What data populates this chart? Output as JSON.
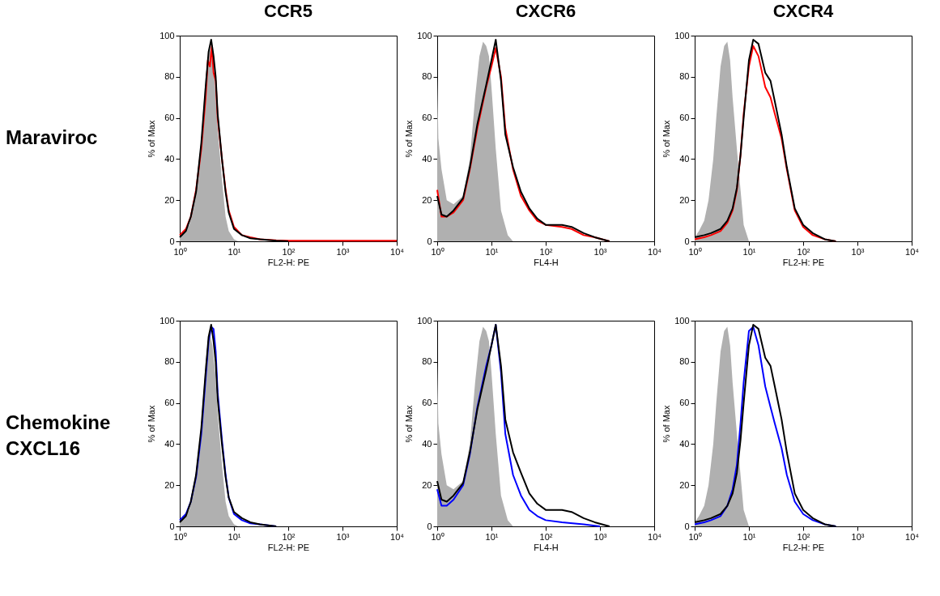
{
  "chart_data": [
    {
      "type": "area",
      "title": "CCR5",
      "annotations": [
        "Maraviroc"
      ],
      "xlabel": "FL2-H: PE",
      "ylabel": "% of Max",
      "log": "x",
      "xlim": [
        1,
        10000
      ],
      "ylim": [
        0,
        100
      ],
      "xticks": [
        {
          "value": 1,
          "label": "10⁰"
        },
        {
          "value": 10,
          "label": "10¹"
        },
        {
          "value": 100,
          "label": "10²"
        },
        {
          "value": 1000,
          "label": "10³"
        },
        {
          "value": 10000,
          "label": "10⁴"
        }
      ],
      "yticks": [
        0,
        20,
        40,
        60,
        80,
        100
      ],
      "series": [
        {
          "type": "area",
          "color": "#b0b0b0",
          "x": [
            1,
            1.5,
            2,
            2.5,
            3,
            3.5,
            4,
            4.5,
            5,
            6,
            7,
            8,
            10,
            12
          ],
          "values": [
            2,
            8,
            25,
            50,
            80,
            95,
            88,
            75,
            55,
            30,
            12,
            5,
            1,
            0
          ]
        },
        {
          "type": "line",
          "color": "#ff0000",
          "x": [
            1,
            1.3,
            1.6,
            2,
            2.5,
            3,
            3.3,
            3.6,
            3.9,
            4.2,
            4.6,
            5,
            6,
            7,
            8,
            10,
            14,
            20,
            30,
            60,
            100,
            1000,
            10000
          ],
          "values": [
            3,
            6,
            12,
            25,
            45,
            70,
            88,
            85,
            95,
            82,
            78,
            60,
            40,
            25,
            15,
            7,
            3,
            2,
            1,
            0.5,
            0.3,
            0.3,
            0.3
          ]
        },
        {
          "type": "line",
          "color": "#000000",
          "x": [
            1,
            1.3,
            1.6,
            2,
            2.5,
            3,
            3.4,
            3.8,
            4.2,
            4.6,
            5,
            6,
            7,
            8,
            10,
            14,
            20,
            30,
            60,
            100
          ],
          "values": [
            2,
            5,
            12,
            24,
            48,
            75,
            92,
            98,
            90,
            80,
            62,
            40,
            24,
            14,
            6,
            3,
            1.5,
            1,
            0.3,
            0
          ]
        }
      ]
    },
    {
      "type": "area",
      "title": "CXCR6",
      "xlabel": "FL4-H",
      "ylabel": "% of Max",
      "log": "x",
      "xlim": [
        1,
        10000
      ],
      "ylim": [
        0,
        100
      ],
      "xticks": [
        {
          "value": 1,
          "label": "10⁰"
        },
        {
          "value": 10,
          "label": "10¹"
        },
        {
          "value": 100,
          "label": "10²"
        },
        {
          "value": 1000,
          "label": "10³"
        },
        {
          "value": 10000,
          "label": "10⁴"
        }
      ],
      "yticks": [
        0,
        20,
        40,
        60,
        80,
        100
      ],
      "series": [
        {
          "type": "area",
          "color": "#b0b0b0",
          "x": [
            1,
            1.05,
            1.2,
            1.5,
            2,
            3,
            4,
            5,
            6,
            7,
            8,
            9,
            10,
            12,
            15,
            20,
            25
          ],
          "values": [
            80,
            50,
            35,
            20,
            18,
            22,
            40,
            70,
            90,
            97,
            95,
            90,
            75,
            45,
            15,
            3,
            0
          ]
        },
        {
          "type": "line",
          "color": "#ff0000",
          "x": [
            1,
            1.2,
            1.5,
            2,
            3,
            4,
            5.5,
            8,
            10,
            12,
            15,
            18,
            25,
            35,
            50,
            70,
            100,
            200,
            300,
            500,
            800,
            1500
          ],
          "values": [
            25,
            12,
            12,
            14,
            20,
            35,
            55,
            75,
            85,
            94,
            80,
            55,
            35,
            22,
            15,
            10,
            8,
            7,
            6,
            3,
            2,
            0
          ]
        },
        {
          "type": "line",
          "color": "#000000",
          "x": [
            1,
            1.2,
            1.5,
            2,
            3,
            4,
            5.5,
            8,
            10,
            12,
            15,
            18,
            25,
            35,
            50,
            70,
            100,
            200,
            300,
            500,
            800,
            1500
          ],
          "values": [
            22,
            13,
            12,
            15,
            21,
            36,
            57,
            76,
            88,
            98,
            78,
            52,
            36,
            24,
            16,
            11,
            8,
            8,
            7,
            4,
            2,
            0
          ]
        }
      ]
    },
    {
      "type": "area",
      "title": "CXCR4",
      "xlabel": "FL2-H: PE",
      "ylabel": "% of Max",
      "log": "x",
      "xlim": [
        1,
        10000
      ],
      "ylim": [
        0,
        100
      ],
      "xticks": [
        {
          "value": 1,
          "label": "10⁰"
        },
        {
          "value": 10,
          "label": "10¹"
        },
        {
          "value": 100,
          "label": "10²"
        },
        {
          "value": 1000,
          "label": "10³"
        },
        {
          "value": 10000,
          "label": "10⁴"
        }
      ],
      "yticks": [
        0,
        20,
        40,
        60,
        80,
        100
      ],
      "series": [
        {
          "type": "area",
          "color": "#b0b0b0",
          "x": [
            1,
            1.2,
            1.5,
            1.8,
            2.2,
            2.5,
            3,
            3.5,
            4,
            4.5,
            5,
            6,
            7,
            8,
            10
          ],
          "values": [
            2,
            5,
            10,
            20,
            40,
            60,
            85,
            95,
            97,
            88,
            70,
            45,
            25,
            8,
            0
          ]
        },
        {
          "type": "line",
          "color": "#ff0000",
          "x": [
            1,
            1.5,
            2,
            3,
            4,
            5,
            6,
            7,
            8,
            10,
            12,
            15,
            20,
            25,
            30,
            40,
            50,
            70,
            100,
            150,
            250,
            400
          ],
          "values": [
            1,
            2,
            3,
            5,
            9,
            15,
            25,
            42,
            62,
            85,
            95,
            90,
            75,
            70,
            62,
            50,
            35,
            15,
            7,
            3,
            1,
            0
          ]
        },
        {
          "type": "line",
          "color": "#000000",
          "x": [
            1,
            1.5,
            2,
            3,
            4,
            5,
            6,
            7,
            8,
            10,
            12,
            15,
            20,
            25,
            30,
            40,
            50,
            70,
            100,
            150,
            250,
            400
          ],
          "values": [
            2,
            3,
            4,
            6,
            10,
            16,
            26,
            42,
            60,
            88,
            98,
            96,
            82,
            78,
            68,
            52,
            36,
            16,
            8,
            4,
            1,
            0
          ]
        }
      ]
    },
    {
      "type": "area",
      "annotations": [
        "Chemokine CXCL16"
      ],
      "xlabel": "FL2-H: PE",
      "ylabel": "% of Max",
      "log": "x",
      "xlim": [
        1,
        10000
      ],
      "ylim": [
        0,
        100
      ],
      "xticks": [
        {
          "value": 1,
          "label": "10⁰"
        },
        {
          "value": 10,
          "label": "10¹"
        },
        {
          "value": 100,
          "label": "10²"
        },
        {
          "value": 1000,
          "label": "10³"
        },
        {
          "value": 10000,
          "label": "10⁴"
        }
      ],
      "yticks": [
        0,
        20,
        40,
        60,
        80,
        100
      ],
      "series": [
        {
          "type": "area",
          "color": "#b0b0b0",
          "x": [
            1,
            1.5,
            2,
            2.5,
            3,
            3.5,
            4,
            4.5,
            5,
            6,
            7,
            8,
            10,
            12
          ],
          "values": [
            2,
            8,
            25,
            50,
            80,
            95,
            88,
            75,
            55,
            30,
            12,
            5,
            1,
            0
          ]
        },
        {
          "type": "line",
          "color": "#0000ff",
          "x": [
            1,
            1.3,
            1.6,
            2,
            2.5,
            3,
            3.4,
            3.8,
            4.2,
            4.6,
            5,
            6,
            7,
            8,
            10,
            14,
            20,
            30,
            60
          ],
          "values": [
            3,
            6,
            12,
            24,
            45,
            72,
            90,
            97,
            96,
            85,
            65,
            42,
            25,
            14,
            6,
            3,
            1.5,
            1,
            0
          ]
        },
        {
          "type": "line",
          "color": "#000000",
          "x": [
            1,
            1.3,
            1.6,
            2,
            2.5,
            3,
            3.4,
            3.8,
            4.2,
            4.6,
            5,
            6,
            7,
            8,
            10,
            14,
            20,
            30,
            60
          ],
          "values": [
            2,
            5,
            12,
            25,
            48,
            75,
            92,
            98,
            90,
            80,
            62,
            40,
            24,
            14,
            7,
            4,
            2,
            1,
            0
          ]
        }
      ]
    },
    {
      "type": "area",
      "xlabel": "FL4-H",
      "ylabel": "% of Max",
      "log": "x",
      "xlim": [
        1,
        10000
      ],
      "ylim": [
        0,
        100
      ],
      "xticks": [
        {
          "value": 1,
          "label": "10⁰"
        },
        {
          "value": 10,
          "label": "10¹"
        },
        {
          "value": 100,
          "label": "10²"
        },
        {
          "value": 1000,
          "label": "10³"
        },
        {
          "value": 10000,
          "label": "10⁴"
        }
      ],
      "yticks": [
        0,
        20,
        40,
        60,
        80,
        100
      ],
      "series": [
        {
          "type": "area",
          "color": "#b0b0b0",
          "x": [
            1,
            1.05,
            1.2,
            1.5,
            2,
            3,
            4,
            5,
            6,
            7,
            8,
            9,
            10,
            12,
            15,
            20,
            25
          ],
          "values": [
            80,
            50,
            35,
            20,
            18,
            22,
            40,
            70,
            90,
            97,
            95,
            90,
            75,
            45,
            15,
            3,
            0
          ]
        },
        {
          "type": "line",
          "color": "#0000ff",
          "x": [
            1,
            1.2,
            1.5,
            2,
            3,
            4,
            5.5,
            8,
            10,
            12,
            15,
            18,
            25,
            35,
            50,
            70,
            100,
            200,
            500,
            1000
          ],
          "values": [
            18,
            10,
            10,
            13,
            20,
            35,
            58,
            78,
            88,
            98,
            75,
            45,
            25,
            15,
            8,
            5,
            3,
            2,
            1,
            0
          ]
        },
        {
          "type": "line",
          "color": "#000000",
          "x": [
            1,
            1.2,
            1.5,
            2,
            3,
            4,
            5.5,
            8,
            10,
            12,
            15,
            18,
            25,
            35,
            50,
            70,
            100,
            200,
            300,
            500,
            800,
            1500
          ],
          "values": [
            22,
            13,
            12,
            15,
            21,
            36,
            57,
            76,
            88,
            98,
            78,
            52,
            36,
            26,
            16,
            11,
            8,
            8,
            7,
            4,
            2,
            0
          ]
        }
      ]
    },
    {
      "type": "area",
      "xlabel": "FL2-H: PE",
      "ylabel": "% of Max",
      "log": "x",
      "xlim": [
        1,
        10000
      ],
      "ylim": [
        0,
        100
      ],
      "xticks": [
        {
          "value": 1,
          "label": "10⁰"
        },
        {
          "value": 10,
          "label": "10¹"
        },
        {
          "value": 100,
          "label": "10²"
        },
        {
          "value": 1000,
          "label": "10³"
        },
        {
          "value": 10000,
          "label": "10⁴"
        }
      ],
      "yticks": [
        0,
        20,
        40,
        60,
        80,
        100
      ],
      "series": [
        {
          "type": "area",
          "color": "#b0b0b0",
          "x": [
            1,
            1.2,
            1.5,
            1.8,
            2.2,
            2.5,
            3,
            3.5,
            4,
            4.5,
            5,
            6,
            7,
            8,
            10
          ],
          "values": [
            2,
            5,
            10,
            20,
            40,
            60,
            85,
            95,
            97,
            88,
            70,
            45,
            25,
            8,
            0
          ]
        },
        {
          "type": "line",
          "color": "#0000ff",
          "x": [
            1,
            1.5,
            2,
            3,
            4,
            5,
            6,
            7,
            8,
            10,
            12,
            15,
            20,
            25,
            30,
            40,
            50,
            70,
            100,
            150,
            250,
            400
          ],
          "values": [
            1,
            2,
            3,
            5,
            10,
            18,
            30,
            50,
            70,
            95,
            97,
            88,
            68,
            58,
            50,
            38,
            25,
            12,
            6,
            3,
            1,
            0
          ]
        },
        {
          "type": "line",
          "color": "#000000",
          "x": [
            1,
            1.5,
            2,
            3,
            4,
            5,
            6,
            7,
            8,
            10,
            12,
            15,
            20,
            25,
            30,
            40,
            50,
            70,
            100,
            150,
            250,
            400
          ],
          "values": [
            2,
            3,
            4,
            6,
            10,
            16,
            26,
            42,
            60,
            88,
            98,
            96,
            82,
            78,
            68,
            52,
            36,
            16,
            8,
            4,
            1,
            0
          ]
        }
      ]
    }
  ]
}
